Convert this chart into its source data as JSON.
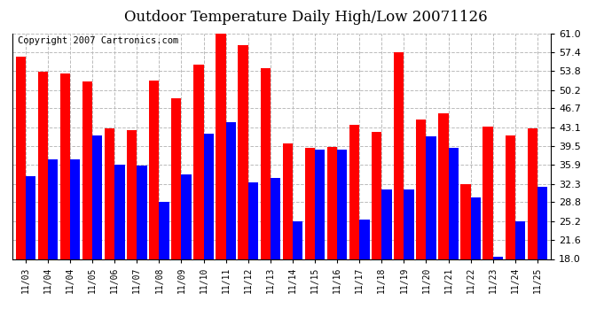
{
  "title": "Outdoor Temperature Daily High/Low 20071126",
  "copyright": "Copyright 2007 Cartronics.com",
  "dates": [
    "11/03",
    "11/04",
    "11/04",
    "11/05",
    "11/06",
    "11/07",
    "11/08",
    "11/09",
    "11/10",
    "11/11",
    "11/12",
    "11/13",
    "11/14",
    "11/15",
    "11/16",
    "11/17",
    "11/18",
    "11/19",
    "11/20",
    "11/21",
    "11/22",
    "11/23",
    "11/24",
    "11/25"
  ],
  "highs": [
    56.5,
    53.6,
    53.4,
    51.8,
    42.8,
    42.6,
    52.0,
    48.6,
    55.0,
    61.0,
    58.8,
    54.4,
    40.0,
    39.2,
    39.4,
    43.6,
    42.2,
    57.4,
    44.6,
    45.8,
    32.3,
    43.2,
    41.5,
    42.8
  ],
  "lows": [
    33.8,
    37.0,
    36.9,
    41.5,
    35.9,
    35.8,
    28.9,
    34.1,
    41.8,
    44.0,
    32.6,
    33.5,
    25.2,
    38.9,
    38.9,
    25.5,
    31.2,
    31.2,
    41.3,
    39.1,
    29.7,
    18.5,
    25.2,
    31.7
  ],
  "ylim": [
    18.0,
    61.0
  ],
  "yticks": [
    18.0,
    21.6,
    25.2,
    28.8,
    32.3,
    35.9,
    39.5,
    43.1,
    46.7,
    50.2,
    53.8,
    57.4,
    61.0
  ],
  "high_color": "#ff0000",
  "low_color": "#0000ff",
  "bg_color": "#ffffff",
  "grid_color": "#bbbbbb",
  "title_fontsize": 12,
  "copyright_fontsize": 7.5
}
